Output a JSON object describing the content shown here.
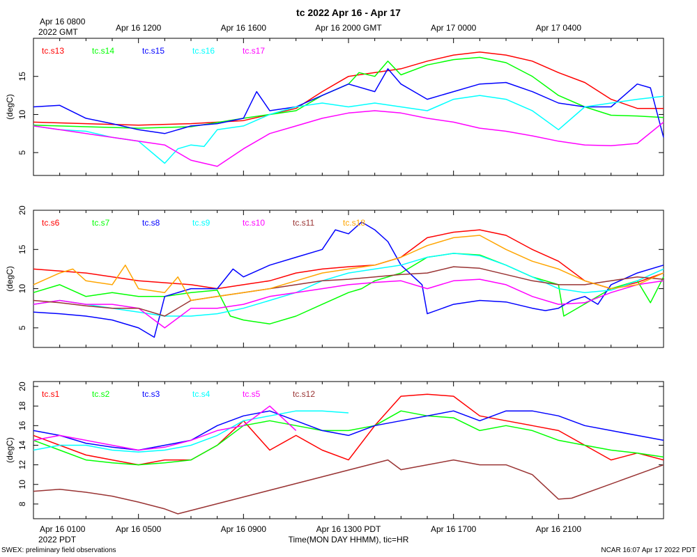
{
  "title": "tc 2022 Apr 16 - Apr 17",
  "footer_left": "SWEX: preliminary field observations",
  "footer_right": "NCAR 16:07 Apr 17 2022 PDT",
  "xlabel": "Time(MON DAY HHMM), tic=HR",
  "gmt_prefix": "2022 GMT",
  "pdt_prefix": "2022 PDT",
  "gmt_ticks": [
    {
      "label": "Apr 16 0800",
      "hour": 0
    },
    {
      "label": "Apr 16 1200",
      "hour": 4
    },
    {
      "label": "Apr 16 1600",
      "hour": 8
    },
    {
      "label": "Apr 16 2000 GMT",
      "hour": 12
    },
    {
      "label": "Apr 17 0000",
      "hour": 16
    },
    {
      "label": "Apr 17 0400",
      "hour": 20
    }
  ],
  "pdt_ticks": [
    {
      "label": "Apr 16 0100",
      "hour": 0
    },
    {
      "label": "Apr 16 0500",
      "hour": 4
    },
    {
      "label": "Apr 16 0900",
      "hour": 8
    },
    {
      "label": "Apr 16 1300 PDT",
      "hour": 12
    },
    {
      "label": "Apr 16 1700",
      "hour": 16
    },
    {
      "label": "Apr 16 2100",
      "hour": 20
    }
  ],
  "chart_data": [
    {
      "type": "line",
      "ylabel": "(degC)",
      "xlim": [
        0,
        24
      ],
      "ylim": [
        2,
        20
      ],
      "yticks": [
        5,
        10,
        15
      ],
      "series": [
        {
          "name": "tc.s13",
          "color": "#ff0000",
          "x": [
            0,
            2,
            4,
            6,
            8,
            10,
            11,
            12,
            13,
            14,
            15,
            16,
            17,
            18,
            19,
            20,
            21,
            22,
            23,
            24
          ],
          "y": [
            9,
            8.8,
            8.6,
            8.8,
            9.2,
            10.8,
            13,
            15,
            15.5,
            16,
            17,
            17.8,
            18.2,
            17.8,
            17,
            15.5,
            14.2,
            12,
            10.8,
            10.8
          ]
        },
        {
          "name": "tc.s14",
          "color": "#00ff00",
          "x": [
            0,
            2,
            4,
            6,
            8,
            10,
            11,
            12,
            12.4,
            13,
            13.5,
            14,
            15,
            16,
            17,
            18,
            19,
            20,
            21,
            22,
            23,
            24
          ],
          "y": [
            8.6,
            8.4,
            8.2,
            8.4,
            9.5,
            10.5,
            12.5,
            14,
            15.5,
            15,
            17,
            15.2,
            16.5,
            17.2,
            17.5,
            16.8,
            15,
            12.5,
            11,
            9.9,
            9.8,
            9.6
          ]
        },
        {
          "name": "tc.s15",
          "color": "#0000ff",
          "x": [
            0,
            1,
            2,
            3,
            4,
            5,
            6,
            7,
            8,
            8.5,
            9,
            10,
            11,
            12,
            13,
            13.5,
            14,
            15,
            16,
            17,
            18,
            19,
            20,
            21,
            22,
            23,
            23.5,
            24
          ],
          "y": [
            11,
            11.2,
            9.5,
            8.8,
            8,
            7.5,
            8.5,
            8.8,
            9.5,
            13,
            10.5,
            11,
            12.5,
            14,
            13,
            16,
            14,
            12,
            13,
            14,
            14.2,
            13,
            11.5,
            11,
            11,
            14,
            13.5,
            7
          ]
        },
        {
          "name": "tc.s16",
          "color": "#00ffff",
          "x": [
            0,
            1,
            2,
            3,
            4,
            5,
            5.5,
            6,
            6.5,
            7,
            8,
            9,
            10,
            11,
            12,
            13,
            14,
            15,
            16,
            17,
            18,
            19,
            20,
            21,
            22,
            23,
            24
          ],
          "y": [
            8.5,
            8,
            7.8,
            7,
            6.5,
            3.6,
            5.5,
            6,
            5.8,
            8,
            8.5,
            10,
            11,
            11.5,
            11,
            11.5,
            11,
            10.5,
            12,
            12.5,
            12,
            10.5,
            8,
            11,
            11.5,
            12,
            12.4
          ]
        },
        {
          "name": "tc.s17",
          "color": "#ff00ff",
          "x": [
            0,
            1,
            2,
            3,
            4,
            5,
            6,
            7,
            8,
            9,
            10,
            11,
            12,
            13,
            14,
            15,
            16,
            17,
            18,
            19,
            20,
            21,
            22,
            23,
            24
          ],
          "y": [
            8.5,
            8,
            7.5,
            7,
            6.5,
            6,
            4,
            3.2,
            5.5,
            7.5,
            8.5,
            9.5,
            10.2,
            10.5,
            10.2,
            9.5,
            9,
            8.2,
            7.8,
            7.2,
            6.5,
            6,
            5.9,
            6.2,
            9
          ]
        }
      ]
    },
    {
      "type": "line",
      "ylabel": "(degC)",
      "xlim": [
        0,
        24
      ],
      "ylim": [
        2.5,
        20
      ],
      "yticks": [
        5,
        10,
        15,
        20
      ],
      "series": [
        {
          "name": "tc.s6",
          "color": "#ff0000",
          "x": [
            0,
            2,
            4,
            6,
            7,
            8,
            9,
            10,
            11,
            12,
            13,
            14,
            15,
            16,
            17,
            18,
            19,
            20,
            21,
            22,
            23,
            24
          ],
          "y": [
            12.5,
            12,
            11,
            10.5,
            10,
            10.5,
            11,
            12,
            12.5,
            12.8,
            13,
            14,
            16.5,
            17.2,
            17.5,
            16.8,
            15,
            13.5,
            11,
            10,
            10.8,
            12
          ]
        },
        {
          "name": "tc.s7",
          "color": "#00ff00",
          "x": [
            0,
            1,
            2,
            3,
            4,
            5,
            6,
            7,
            7.5,
            8,
            9,
            10,
            11,
            12,
            12.5,
            13,
            14,
            15,
            16,
            17,
            18,
            19,
            20,
            20.2,
            22,
            23,
            23.5,
            24
          ],
          "y": [
            9.5,
            10.5,
            9,
            9.5,
            9,
            9,
            9.5,
            9.8,
            6.5,
            6,
            5.5,
            6.5,
            8,
            9.5,
            10,
            11,
            12,
            14,
            14.5,
            14.3,
            13,
            11.5,
            10.5,
            6.5,
            10,
            11,
            8.2,
            11.5
          ]
        },
        {
          "name": "tc.s8",
          "color": "#0000ff",
          "x": [
            0,
            1,
            2,
            3,
            4,
            4.6,
            5,
            6,
            7,
            7.6,
            8,
            9,
            10,
            11,
            11.5,
            12,
            12.5,
            13,
            13.5,
            14,
            14.8,
            15,
            16,
            17,
            18,
            19,
            19.5,
            20,
            20.5,
            21,
            21.5,
            22,
            23,
            24
          ],
          "y": [
            7,
            6.8,
            6.5,
            6,
            5,
            3.8,
            9,
            10,
            10,
            12.5,
            11.5,
            13,
            14,
            15,
            17.5,
            17,
            18.5,
            17.5,
            16,
            13,
            10.5,
            6.8,
            8,
            8.5,
            8.3,
            7.5,
            7.2,
            7.5,
            8.5,
            9,
            8,
            10.5,
            12,
            13
          ]
        },
        {
          "name": "tc.s9",
          "color": "#00ffff",
          "x": [
            0,
            1,
            2,
            3,
            4,
            5,
            6,
            7,
            8,
            9,
            10,
            11,
            12,
            13,
            14,
            15,
            16,
            17,
            18,
            19,
            20,
            21,
            22,
            23,
            24
          ],
          "y": [
            8,
            8.5,
            8,
            7.5,
            7,
            6.5,
            6.5,
            6.8,
            7.5,
            8.5,
            9.5,
            11,
            12,
            12.5,
            13,
            14,
            14.5,
            14.2,
            13,
            11.5,
            10,
            9.5,
            9.8,
            11,
            12.5
          ]
        },
        {
          "name": "tc.s10",
          "color": "#ff00ff",
          "x": [
            0,
            1,
            2,
            3,
            4,
            5,
            6,
            7,
            8,
            9,
            10,
            11,
            12,
            13,
            14,
            15,
            16,
            17,
            18,
            19,
            20,
            21,
            22,
            23,
            24
          ],
          "y": [
            8,
            8.5,
            8,
            8,
            7.5,
            5,
            7.5,
            7.5,
            8,
            9,
            9.5,
            10,
            10.5,
            10.8,
            11,
            10,
            11,
            11.2,
            10.5,
            9,
            8,
            8.2,
            9.5,
            10.5,
            11
          ]
        },
        {
          "name": "tc.s11",
          "color": "#993333",
          "x": [
            0,
            1,
            2,
            3,
            4,
            5,
            6,
            7,
            8,
            9,
            10,
            11,
            12,
            13,
            14,
            15,
            16,
            17,
            18,
            19,
            20,
            21,
            22,
            23,
            24
          ],
          "y": [
            8.5,
            8.2,
            7.8,
            7.5,
            7.5,
            6.5,
            8.5,
            9,
            9.5,
            10,
            10.5,
            11,
            11.2,
            11.5,
            11.8,
            12,
            12.8,
            12.6,
            11.8,
            11,
            10.5,
            10.5,
            11,
            11.5,
            11.2
          ]
        },
        {
          "name": "tc.s18",
          "color": "#ffa500",
          "x": [
            0,
            1,
            1.5,
            2,
            3,
            3.5,
            4,
            5,
            5.5,
            6,
            7,
            8,
            9,
            10,
            11,
            12,
            13,
            14,
            15,
            16,
            17,
            18,
            19,
            20,
            21,
            22,
            23,
            24
          ],
          "y": [
            10.5,
            12,
            12.5,
            11,
            10.5,
            13,
            10,
            9.5,
            11.5,
            8.5,
            9,
            9.5,
            10,
            11,
            12,
            12.5,
            13,
            14,
            15.5,
            16.5,
            16.8,
            15,
            13.5,
            12.5,
            11,
            10,
            10.5,
            12
          ]
        }
      ]
    },
    {
      "type": "line",
      "ylabel": "(degC)",
      "xlim": [
        0,
        24
      ],
      "ylim": [
        6.5,
        20.5
      ],
      "yticks": [
        8,
        10,
        12,
        14,
        16,
        18,
        20
      ],
      "series": [
        {
          "name": "tc.s1",
          "color": "#ff0000",
          "x": [
            0,
            1,
            2,
            3,
            4,
            5,
            6,
            7,
            8,
            9,
            10,
            11,
            12,
            13,
            14,
            15,
            16,
            17,
            18,
            19,
            20,
            21,
            22,
            23,
            24
          ],
          "y": [
            15,
            14,
            13,
            12.5,
            12,
            12.5,
            12.5,
            14,
            16.5,
            13.5,
            15,
            13.5,
            12.5,
            16,
            19,
            19.2,
            19,
            17,
            16.5,
            16,
            15.5,
            14,
            12.5,
            13.2,
            12.5
          ]
        },
        {
          "name": "tc.s2",
          "color": "#00ff00",
          "x": [
            0,
            1,
            2,
            3,
            4,
            5,
            6,
            7,
            8,
            9,
            10,
            11,
            12,
            13,
            14,
            15,
            16,
            17,
            18,
            19,
            20,
            21,
            22,
            23,
            24
          ],
          "y": [
            14.5,
            13.5,
            12.5,
            12.2,
            12,
            12.2,
            12.5,
            14,
            16,
            16.5,
            16,
            15.5,
            15.5,
            16,
            17.5,
            17,
            16.8,
            15.5,
            16,
            15.5,
            14.5,
            14,
            13.5,
            13.2,
            12.8
          ]
        },
        {
          "name": "tc.s3",
          "color": "#0000ff",
          "x": [
            0,
            1,
            2,
            3,
            4,
            5,
            6,
            7,
            8,
            9,
            10,
            11,
            12,
            13,
            14,
            15,
            16,
            17,
            18,
            19,
            20,
            21,
            22,
            23,
            24
          ],
          "y": [
            15.5,
            15,
            14.2,
            13.8,
            13.5,
            14,
            14.5,
            16,
            17,
            17.5,
            16.5,
            15.5,
            15,
            16,
            16.5,
            17,
            17.5,
            16.5,
            17.5,
            17.5,
            17,
            16,
            15.5,
            15,
            14.5
          ]
        },
        {
          "name": "tc.s4",
          "color": "#00ffff",
          "x": [
            0,
            1,
            2,
            3,
            4,
            5,
            6,
            7,
            8,
            9,
            10,
            11,
            12
          ],
          "y": [
            13.5,
            14,
            14,
            13.5,
            13.3,
            13.5,
            14,
            15,
            16.5,
            17,
            17.5,
            17.5,
            17.3
          ]
        },
        {
          "name": "tc.s5",
          "color": "#ff00ff",
          "x": [
            0,
            1,
            2,
            3,
            4,
            5,
            6,
            7,
            8,
            9,
            10
          ],
          "y": [
            14.5,
            15,
            14.5,
            14,
            13.5,
            13.8,
            14.5,
            15.5,
            16,
            18,
            15.5
          ]
        },
        {
          "name": "tc.s12",
          "color": "#993333",
          "x": [
            0,
            1,
            2,
            3,
            4,
            5,
            5.5,
            13.5,
            14,
            15,
            16,
            17,
            18,
            19,
            20,
            20.5,
            23.5,
            24
          ],
          "y": [
            9.3,
            9.5,
            9.2,
            8.8,
            8.2,
            7.5,
            7,
            12.5,
            11.5,
            12,
            12.5,
            12,
            12,
            11,
            8.5,
            8.6,
            11.5,
            12
          ]
        }
      ]
    }
  ]
}
